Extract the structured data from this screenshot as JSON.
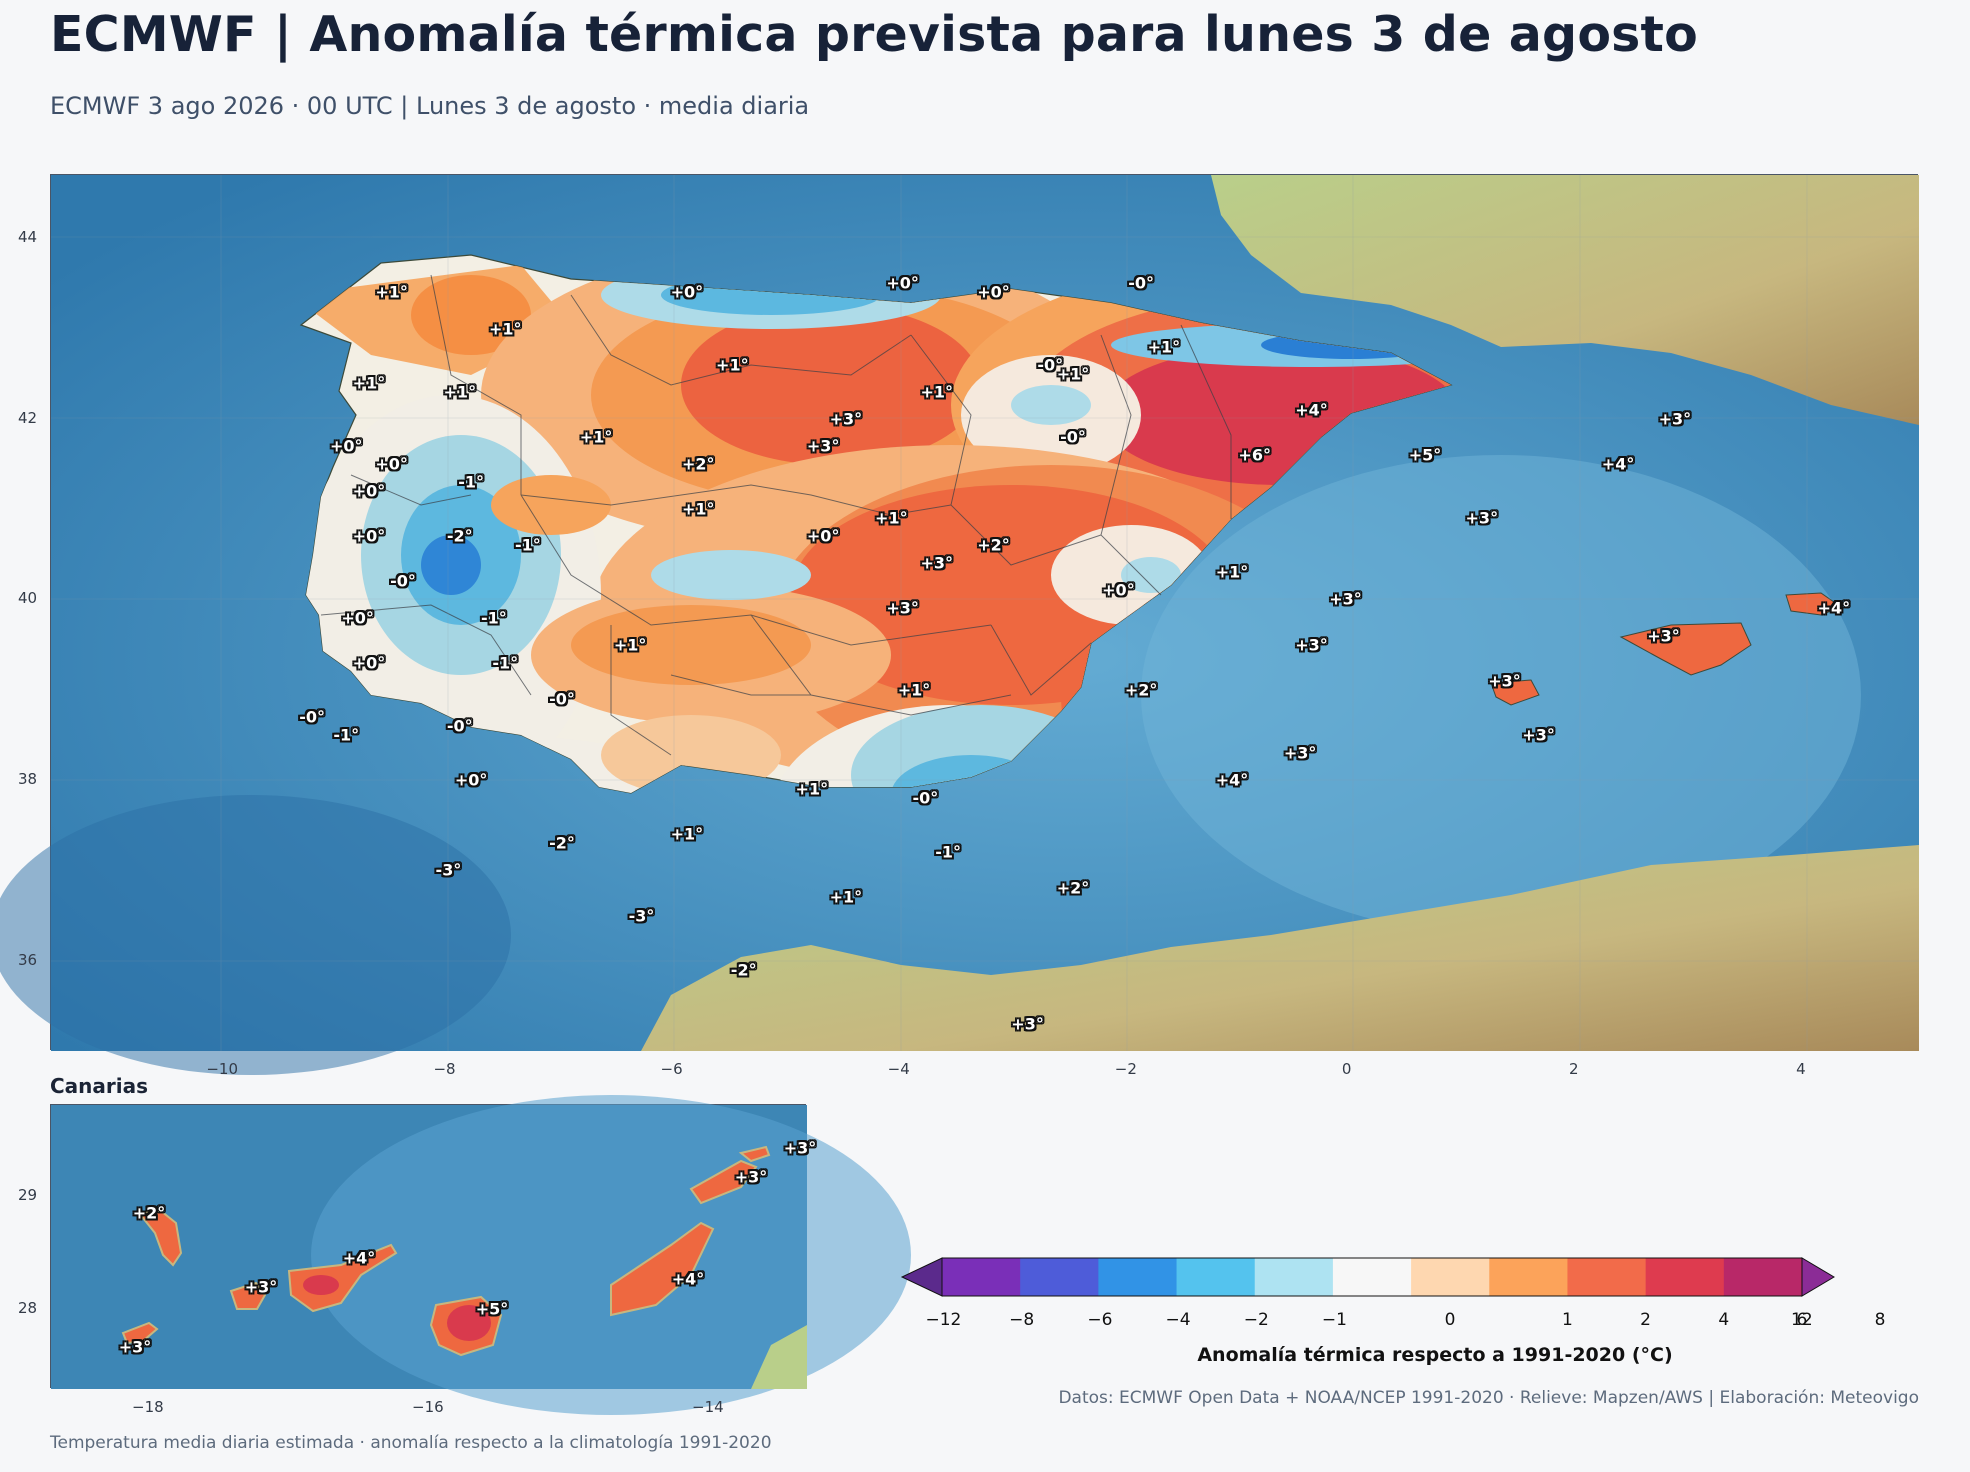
{
  "title": "ECMWF | Anomalía térmica prevista para lunes 3 de agosto",
  "subtitle": "ECMWF 3 ago 2026 · 00 UTC  |  Lunes 3 de agosto · media diaria",
  "main_map": {
    "x_ticks": [
      "−10",
      "−8",
      "−6",
      "−4",
      "−2",
      "0",
      "2",
      "4"
    ],
    "y_ticks": [
      "44",
      "42",
      "40",
      "38",
      "36"
    ],
    "labels": [
      {
        "text": "+1°",
        "lon": -8.5,
        "lat": 43.4
      },
      {
        "text": "+1°",
        "lon": -7.5,
        "lat": 43.0
      },
      {
        "text": "+1°",
        "lon": -8.7,
        "lat": 42.4
      },
      {
        "text": "+1°",
        "lon": -7.9,
        "lat": 42.3
      },
      {
        "text": "+0°",
        "lon": -5.9,
        "lat": 43.4
      },
      {
        "text": "+0°",
        "lon": -4.0,
        "lat": 43.5
      },
      {
        "text": "+0°",
        "lon": -3.2,
        "lat": 43.4
      },
      {
        "text": "-0°",
        "lon": -1.9,
        "lat": 43.5
      },
      {
        "text": "+1°",
        "lon": -1.7,
        "lat": 42.8
      },
      {
        "text": "-0°",
        "lon": -2.7,
        "lat": 42.6
      },
      {
        "text": "+1°",
        "lon": -2.5,
        "lat": 42.5
      },
      {
        "text": "+1°",
        "lon": -5.5,
        "lat": 42.6
      },
      {
        "text": "+1°",
        "lon": -3.7,
        "lat": 42.3
      },
      {
        "text": "+3°",
        "lon": -4.5,
        "lat": 42.0
      },
      {
        "text": "+3°",
        "lon": -4.7,
        "lat": 41.7
      },
      {
        "text": "+1°",
        "lon": -6.7,
        "lat": 41.8
      },
      {
        "text": "+2°",
        "lon": -5.8,
        "lat": 41.5
      },
      {
        "text": "-0°",
        "lon": -2.5,
        "lat": 41.8
      },
      {
        "text": "+4°",
        "lon": -0.4,
        "lat": 42.1
      },
      {
        "text": "+6°",
        "lon": -0.9,
        "lat": 41.6
      },
      {
        "text": "+5°",
        "lon": 0.6,
        "lat": 41.6
      },
      {
        "text": "+3°",
        "lon": 2.8,
        "lat": 42.0
      },
      {
        "text": "+4°",
        "lon": 2.3,
        "lat": 41.5
      },
      {
        "text": "+3°",
        "lon": 1.1,
        "lat": 40.9
      },
      {
        "text": "+0°",
        "lon": -8.9,
        "lat": 41.7
      },
      {
        "text": "+0°",
        "lon": -8.5,
        "lat": 41.5
      },
      {
        "text": "+0°",
        "lon": -8.7,
        "lat": 41.2
      },
      {
        "text": "-1°",
        "lon": -7.8,
        "lat": 41.3
      },
      {
        "text": "+0°",
        "lon": -8.7,
        "lat": 40.7
      },
      {
        "text": "-2°",
        "lon": -7.9,
        "lat": 40.7
      },
      {
        "text": "-1°",
        "lon": -7.3,
        "lat": 40.6
      },
      {
        "text": "-0°",
        "lon": -8.4,
        "lat": 40.2
      },
      {
        "text": "+1°",
        "lon": -5.8,
        "lat": 41.0
      },
      {
        "text": "+1°",
        "lon": -4.1,
        "lat": 40.9
      },
      {
        "text": "+0°",
        "lon": -4.7,
        "lat": 40.7
      },
      {
        "text": "+2°",
        "lon": -3.2,
        "lat": 40.6
      },
      {
        "text": "+3°",
        "lon": -3.7,
        "lat": 40.4
      },
      {
        "text": "+3°",
        "lon": -4.0,
        "lat": 39.9
      },
      {
        "text": "+0°",
        "lon": -2.1,
        "lat": 40.1
      },
      {
        "text": "+1°",
        "lon": -1.1,
        "lat": 40.3
      },
      {
        "text": "+3°",
        "lon": -0.1,
        "lat": 40.0
      },
      {
        "text": "+3°",
        "lon": -0.4,
        "lat": 39.5
      },
      {
        "text": "+0°",
        "lon": -8.8,
        "lat": 39.8
      },
      {
        "text": "-1°",
        "lon": -7.6,
        "lat": 39.8
      },
      {
        "text": "+0°",
        "lon": -8.7,
        "lat": 39.3
      },
      {
        "text": "-1°",
        "lon": -7.5,
        "lat": 39.3
      },
      {
        "text": "+1°",
        "lon": -6.4,
        "lat": 39.5
      },
      {
        "text": "-0°",
        "lon": -7.0,
        "lat": 38.9
      },
      {
        "text": "+1°",
        "lon": -3.9,
        "lat": 39.0
      },
      {
        "text": "+2°",
        "lon": -1.9,
        "lat": 39.0
      },
      {
        "text": "-0°",
        "lon": -9.2,
        "lat": 38.7
      },
      {
        "text": "-1°",
        "lon": -8.9,
        "lat": 38.5
      },
      {
        "text": "-0°",
        "lon": -7.9,
        "lat": 38.6
      },
      {
        "text": "+0°",
        "lon": -7.8,
        "lat": 38.0
      },
      {
        "text": "+1°",
        "lon": -4.8,
        "lat": 37.9
      },
      {
        "text": "-0°",
        "lon": -3.8,
        "lat": 37.8
      },
      {
        "text": "+3°",
        "lon": -0.5,
        "lat": 38.3
      },
      {
        "text": "+4°",
        "lon": -1.1,
        "lat": 38.0
      },
      {
        "text": "+1°",
        "lon": -5.9,
        "lat": 37.4
      },
      {
        "text": "-1°",
        "lon": -3.6,
        "lat": 37.2
      },
      {
        "text": "-2°",
        "lon": -7.0,
        "lat": 37.3
      },
      {
        "text": "-3°",
        "lon": -8.0,
        "lat": 37.0
      },
      {
        "text": "+2°",
        "lon": -2.5,
        "lat": 36.8
      },
      {
        "text": "+1°",
        "lon": -4.5,
        "lat": 36.7
      },
      {
        "text": "-3°",
        "lon": -6.3,
        "lat": 36.5
      },
      {
        "text": "-2°",
        "lon": -5.4,
        "lat": 35.9
      },
      {
        "text": "+3°",
        "lon": -2.9,
        "lat": 35.3
      },
      {
        "text": "+3°",
        "lon": 1.3,
        "lat": 39.1
      },
      {
        "text": "+3°",
        "lon": 1.6,
        "lat": 38.5
      },
      {
        "text": "+3°",
        "lon": 2.7,
        "lat": 39.6
      },
      {
        "text": "+4°",
        "lon": 4.2,
        "lat": 39.9
      }
    ]
  },
  "inset": {
    "title": "Canarias",
    "x_ticks": [
      "−18",
      "−16",
      "−14"
    ],
    "y_ticks": [
      "29",
      "28"
    ],
    "labels": [
      {
        "text": "+2°",
        "lon": -18.0,
        "lat": 28.85
      },
      {
        "text": "+3°",
        "lon": -17.2,
        "lat": 28.2
      },
      {
        "text": "+4°",
        "lon": -16.5,
        "lat": 28.45
      },
      {
        "text": "+5°",
        "lon": -15.55,
        "lat": 28.0
      },
      {
        "text": "+4°",
        "lon": -14.15,
        "lat": 28.27
      },
      {
        "text": "+3°",
        "lon": -13.7,
        "lat": 29.17
      },
      {
        "text": "+3°",
        "lon": -13.35,
        "lat": 29.42
      },
      {
        "text": "+3°",
        "lon": -18.1,
        "lat": 27.67
      }
    ]
  },
  "colorbar": {
    "label": "Anomalía térmica respecto a 1991-2020 (°C)",
    "ticks": [
      "−12",
      "−8",
      "−6",
      "−4",
      "−2",
      "−1",
      "0",
      "1",
      "2",
      "4",
      "6",
      "8",
      "12"
    ],
    "colors": [
      "#5b2a8c",
      "#7a2fb8",
      "#4e5cd9",
      "#3193e6",
      "#54c3ee",
      "#aee3f2",
      "#f7f7f7",
      "#fed7b0",
      "#fca35a",
      "#f26b4a",
      "#de3b4f",
      "#b82868",
      "#8b2c96"
    ]
  },
  "source": "Datos: ECMWF Open Data + NOAA/NCEP 1991-2020 · Relieve: Mapzen/AWS  |  Elaboración: Meteovigo",
  "footer": "Temperatura media diaria estimada · anomalía respecto a la climatología 1991-2020"
}
